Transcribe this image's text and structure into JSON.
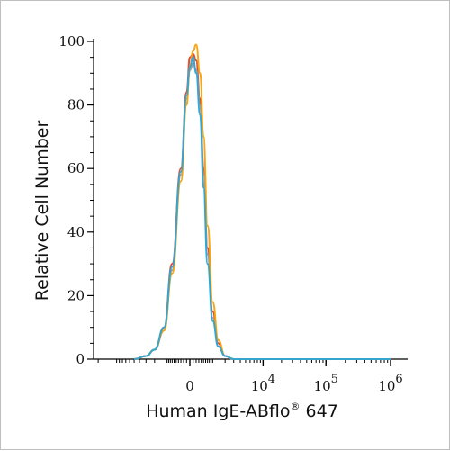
{
  "chart_data": {
    "type": "line",
    "xlabel": "Human IgE-ABflo",
    "xlabel_sup": "®",
    "xlabel_tail": " 647",
    "ylabel": "Relative Cell Number",
    "ylim": [
      0,
      100
    ],
    "y_ticks": [
      "0",
      "20",
      "40",
      "60",
      "80",
      "100"
    ],
    "x_scale": "biexponential",
    "x_ticks": [
      {
        "base": "0",
        "exp": ""
      },
      {
        "base": "10",
        "exp": "4"
      },
      {
        "base": "10",
        "exp": "5"
      },
      {
        "base": "10",
        "exp": "6"
      }
    ],
    "grid": false,
    "series": [
      {
        "color": "#e0432c",
        "peak": 96,
        "points": [
          [
            -5000,
            0
          ],
          [
            -3000,
            1
          ],
          [
            -2000,
            3
          ],
          [
            -1200,
            10
          ],
          [
            -700,
            30
          ],
          [
            -300,
            60
          ],
          [
            -100,
            84
          ],
          [
            0,
            95
          ],
          [
            100,
            96
          ],
          [
            200,
            94
          ],
          [
            350,
            82
          ],
          [
            500,
            60
          ],
          [
            700,
            35
          ],
          [
            1000,
            15
          ],
          [
            1400,
            5
          ],
          [
            2000,
            1
          ],
          [
            3000,
            0
          ],
          [
            1000000,
            0
          ]
        ]
      },
      {
        "color": "#9b9b9b",
        "peak": 93,
        "points": [
          [
            -5000,
            0
          ],
          [
            -3000,
            1
          ],
          [
            -2000,
            3
          ],
          [
            -1200,
            9
          ],
          [
            -700,
            28
          ],
          [
            -300,
            58
          ],
          [
            -100,
            82
          ],
          [
            0,
            91
          ],
          [
            100,
            93
          ],
          [
            200,
            91
          ],
          [
            350,
            80
          ],
          [
            500,
            58
          ],
          [
            700,
            33
          ],
          [
            1000,
            13
          ],
          [
            1400,
            4
          ],
          [
            2000,
            1
          ],
          [
            3000,
            0
          ],
          [
            1000000,
            0
          ]
        ]
      },
      {
        "color": "#f5a20a",
        "peak": 99,
        "points": [
          [
            -5000,
            0
          ],
          [
            -3000,
            1
          ],
          [
            -2000,
            3
          ],
          [
            -1200,
            9
          ],
          [
            -700,
            27
          ],
          [
            -300,
            56
          ],
          [
            -100,
            80
          ],
          [
            0,
            92
          ],
          [
            100,
            97
          ],
          [
            200,
            99
          ],
          [
            350,
            90
          ],
          [
            500,
            70
          ],
          [
            700,
            42
          ],
          [
            1000,
            18
          ],
          [
            1400,
            6
          ],
          [
            2000,
            1
          ],
          [
            3000,
            0
          ],
          [
            1000000,
            0
          ]
        ]
      },
      {
        "color": "#2aa6d9",
        "peak": 95,
        "points": [
          [
            -5000,
            0
          ],
          [
            -3000,
            1
          ],
          [
            -2000,
            3
          ],
          [
            -1200,
            10
          ],
          [
            -700,
            29
          ],
          [
            -300,
            59
          ],
          [
            -100,
            83
          ],
          [
            0,
            92
          ],
          [
            100,
            95
          ],
          [
            200,
            90
          ],
          [
            350,
            77
          ],
          [
            500,
            54
          ],
          [
            700,
            30
          ],
          [
            1000,
            12
          ],
          [
            1400,
            4
          ],
          [
            2000,
            1
          ],
          [
            3000,
            0
          ],
          [
            1000000,
            0
          ]
        ]
      }
    ]
  }
}
